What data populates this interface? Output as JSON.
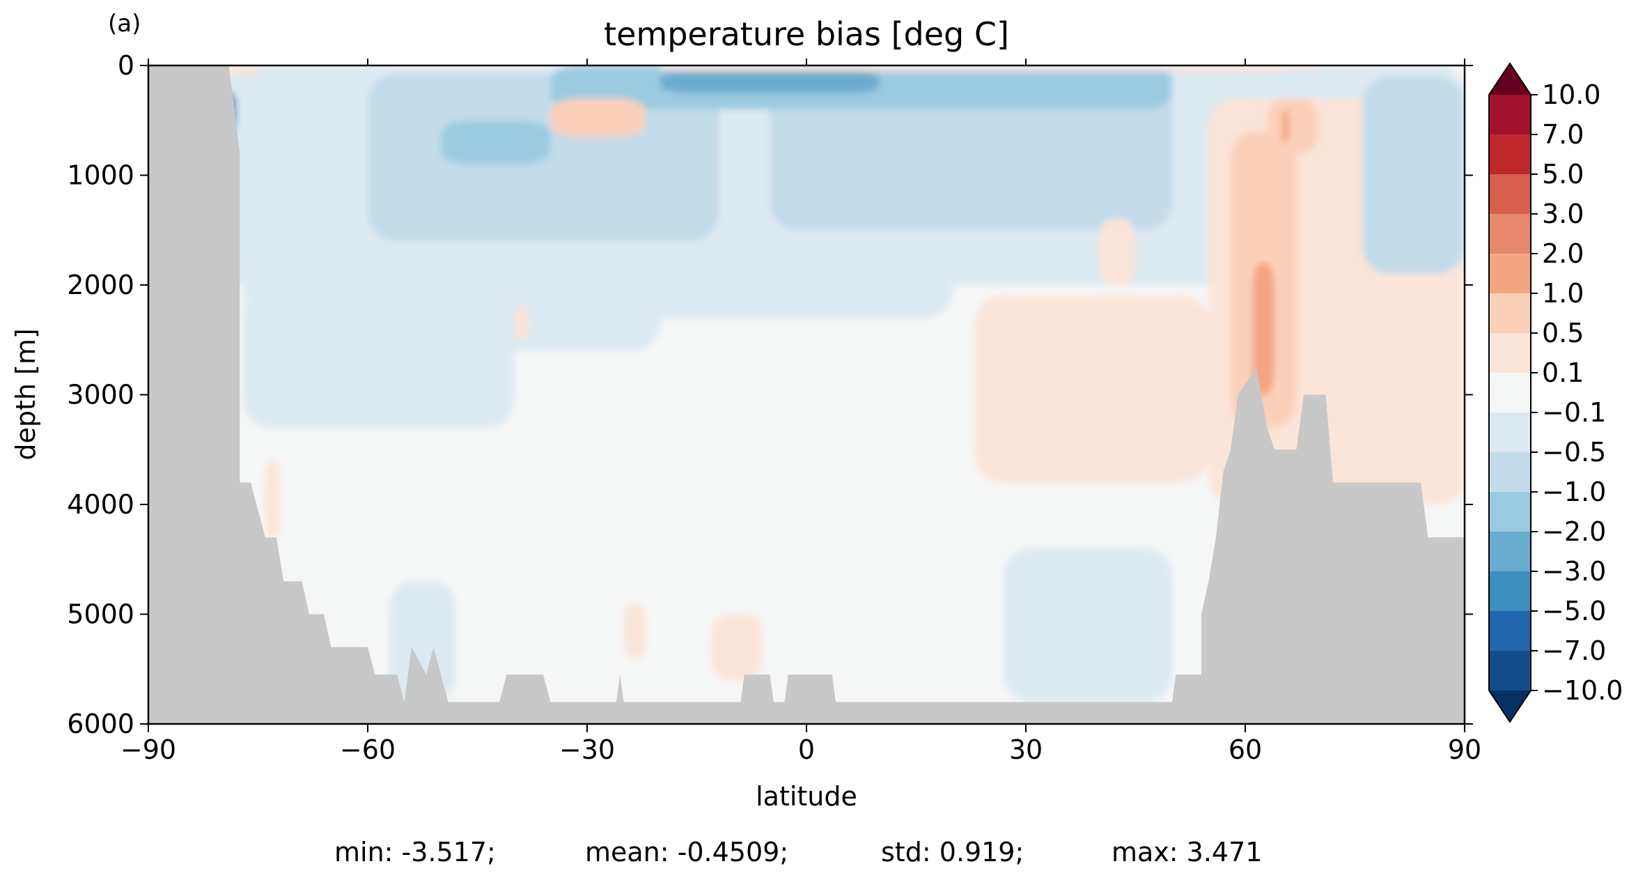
{
  "chart_data": {
    "type": "heatmap",
    "panel_label": "(a)",
    "title": "temperature bias [deg C]",
    "xlabel": "latitude",
    "ylabel": "depth [m]",
    "xlim": [
      -90,
      90
    ],
    "ylim": [
      0,
      6000
    ],
    "y_inverted": true,
    "x_ticks": [
      -90,
      -60,
      -30,
      0,
      30,
      60,
      90
    ],
    "x_tick_labels": [
      "−90",
      "−60",
      "−30",
      "0",
      "30",
      "60",
      "90"
    ],
    "y_ticks": [
      0,
      1000,
      2000,
      3000,
      4000,
      5000,
      6000
    ],
    "y_tick_labels": [
      "0",
      "1000",
      "2000",
      "3000",
      "4000",
      "5000",
      "6000"
    ],
    "land_color": "#c8c8c8",
    "colorbar": {
      "labels": [
        "10.0",
        "7.0",
        "5.0",
        "3.0",
        "2.0",
        "1.0",
        "0.5",
        "0.1",
        "−0.1",
        "−0.5",
        "−1.0",
        "−2.0",
        "−3.0",
        "−5.0",
        "−7.0",
        "−10.0"
      ],
      "colors": [
        "#a1132a",
        "#c0272d",
        "#d6604d",
        "#e7876c",
        "#f4a582",
        "#fbd0b9",
        "#fbe5d8",
        "#f5f6f6",
        "#dde9f1",
        "#c2dcea",
        "#9ccae1",
        "#6aaccf",
        "#3e8fc0",
        "#2166ac",
        "#144d8a"
      ],
      "over_color": "#67001f",
      "under_color": "#053061"
    },
    "stats": {
      "min": "min: -3.517;",
      "mean": "mean: -0.4509;",
      "std": "std: 0.919;",
      "max": "max: 3.471"
    },
    "bias_regions": [
      {
        "lat": [
          -80,
          90
        ],
        "depth": [
          0,
          2000
        ],
        "value": -0.3
      },
      {
        "lat": [
          -77,
          20
        ],
        "depth": [
          1400,
          2300
        ],
        "value": -0.3
      },
      {
        "lat": [
          -65,
          -20
        ],
        "depth": [
          100,
          2600
        ],
        "value": -0.3
      },
      {
        "lat": [
          -77,
          -40
        ],
        "depth": [
          2000,
          3300
        ],
        "value": -0.3
      },
      {
        "lat": [
          -60,
          -12
        ],
        "depth": [
          80,
          1600
        ],
        "value": -0.7
      },
      {
        "lat": [
          -5,
          50
        ],
        "depth": [
          80,
          1500
        ],
        "value": -0.7
      },
      {
        "lat": [
          -35,
          50
        ],
        "depth": [
          0,
          400
        ],
        "value": -1.5
      },
      {
        "lat": [
          -50,
          -35
        ],
        "depth": [
          500,
          900
        ],
        "value": -1.5
      },
      {
        "lat": [
          -20,
          10
        ],
        "depth": [
          50,
          250
        ],
        "value": -2.5
      },
      {
        "lat": [
          -35,
          -22
        ],
        "depth": [
          300,
          650
        ],
        "value": 0.7
      },
      {
        "lat": [
          -80,
          -78
        ],
        "depth": [
          250,
          600
        ],
        "value": -4.0
      },
      {
        "lat": [
          -79,
          -75
        ],
        "depth": [
          0,
          80
        ],
        "value": 0.3
      },
      {
        "lat": [
          -20,
          70
        ],
        "depth": [
          0,
          50
        ],
        "value": 0.3
      },
      {
        "lat": [
          55,
          90
        ],
        "depth": [
          300,
          4000
        ],
        "value": 0.3
      },
      {
        "lat": [
          23,
          55
        ],
        "depth": [
          2100,
          3800
        ],
        "value": 0.3
      },
      {
        "lat": [
          40,
          45
        ],
        "depth": [
          1400,
          2000
        ],
        "value": 0.3
      },
      {
        "lat": [
          58,
          67
        ],
        "depth": [
          600,
          3300
        ],
        "value": 0.7
      },
      {
        "lat": [
          61,
          64
        ],
        "depth": [
          1800,
          3000
        ],
        "value": 1.5
      },
      {
        "lat": [
          63,
          70
        ],
        "depth": [
          300,
          800
        ],
        "value": 0.7
      },
      {
        "lat": [
          65,
          66
        ],
        "depth": [
          400,
          700
        ],
        "value": 1.5
      },
      {
        "lat": [
          76,
          90
        ],
        "depth": [
          100,
          1900
        ],
        "value": -0.7
      },
      {
        "lat": [
          -74,
          -72
        ],
        "depth": [
          3600,
          4300
        ],
        "value": 0.3
      },
      {
        "lat": [
          -40,
          -38
        ],
        "depth": [
          2200,
          2500
        ],
        "value": 0.3
      },
      {
        "lat": [
          -25,
          -22
        ],
        "depth": [
          4900,
          5400
        ],
        "value": 0.3
      },
      {
        "lat": [
          -13,
          -6
        ],
        "depth": [
          5000,
          5600
        ],
        "value": 0.3
      },
      {
        "lat": [
          -57,
          -48
        ],
        "depth": [
          4700,
          5800
        ],
        "value": -0.3
      },
      {
        "lat": [
          27,
          50
        ],
        "depth": [
          4400,
          5800
        ],
        "value": -0.3
      }
    ],
    "bathymetry": [
      [
        -90,
        0
      ],
      [
        -79,
        0
      ],
      [
        -77.5,
        800
      ],
      [
        -77.5,
        3800
      ],
      [
        -76,
        3800
      ],
      [
        -74,
        4300
      ],
      [
        -72.5,
        4300
      ],
      [
        -71.5,
        4700
      ],
      [
        -69,
        4700
      ],
      [
        -68,
        5000
      ],
      [
        -66,
        5000
      ],
      [
        -65,
        5300
      ],
      [
        -60,
        5300
      ],
      [
        -59,
        5550
      ],
      [
        -56,
        5550
      ],
      [
        -55,
        5800
      ],
      [
        -54,
        5300
      ],
      [
        -52,
        5550
      ],
      [
        -51,
        5300
      ],
      [
        -49,
        5800
      ],
      [
        -42,
        5800
      ],
      [
        -41,
        5550
      ],
      [
        -36,
        5550
      ],
      [
        -35,
        5800
      ],
      [
        -26,
        5800
      ],
      [
        -25.5,
        5550
      ],
      [
        -25,
        5800
      ],
      [
        -9,
        5800
      ],
      [
        -8.5,
        5550
      ],
      [
        -5,
        5550
      ],
      [
        -4.5,
        5800
      ],
      [
        -3,
        5800
      ],
      [
        -2.5,
        5550
      ],
      [
        3.5,
        5550
      ],
      [
        4,
        5800
      ],
      [
        50,
        5800
      ],
      [
        50.5,
        5550
      ],
      [
        54,
        5550
      ],
      [
        54,
        5000
      ],
      [
        55,
        4700
      ],
      [
        56,
        4300
      ],
      [
        57,
        3700
      ],
      [
        58,
        3500
      ],
      [
        59,
        3000
      ],
      [
        61.5,
        2750
      ],
      [
        63,
        3300
      ],
      [
        64,
        3500
      ],
      [
        67,
        3500
      ],
      [
        68,
        3000
      ],
      [
        71,
        3000
      ],
      [
        72,
        3800
      ],
      [
        84,
        3800
      ],
      [
        85,
        4300
      ],
      [
        90,
        4300
      ],
      [
        90,
        6000
      ],
      [
        -90,
        6000
      ]
    ]
  }
}
